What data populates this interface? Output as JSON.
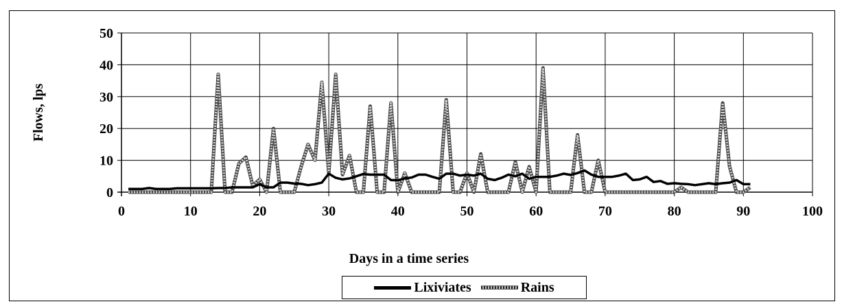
{
  "chart_data": {
    "type": "line",
    "title": "",
    "xlabel": "Days in a time series",
    "ylabel": "Flows, lps",
    "xlim": [
      0,
      100
    ],
    "ylim": [
      0,
      50
    ],
    "x_ticks": [
      0,
      10,
      20,
      30,
      40,
      50,
      60,
      70,
      80,
      90,
      100
    ],
    "y_ticks": [
      0,
      10,
      20,
      30,
      40,
      50
    ],
    "grid": true,
    "legend_position": "bottom",
    "series": [
      {
        "name": "Lixiviates",
        "color": "#000000",
        "style": "solid",
        "points": [
          [
            1,
            1
          ],
          [
            2,
            1
          ],
          [
            3,
            1
          ],
          [
            4,
            1.3
          ],
          [
            5,
            1
          ],
          [
            6,
            1
          ],
          [
            7,
            1
          ],
          [
            8,
            1.2
          ],
          [
            9,
            1.2
          ],
          [
            10,
            1.2
          ],
          [
            11,
            1.2
          ],
          [
            12,
            1.2
          ],
          [
            13,
            1.2
          ],
          [
            14,
            1.3
          ],
          [
            15,
            1.3
          ],
          [
            16,
            1.5
          ],
          [
            17,
            1.5
          ],
          [
            18,
            1.5
          ],
          [
            19,
            1.5
          ],
          [
            20,
            2.5
          ],
          [
            21,
            1.5
          ],
          [
            22,
            1.5
          ],
          [
            23,
            3
          ],
          [
            24,
            3
          ],
          [
            25,
            2.7
          ],
          [
            26,
            2.6
          ],
          [
            27,
            2.2
          ],
          [
            28,
            2.5
          ],
          [
            29,
            3
          ],
          [
            30,
            5.8
          ],
          [
            31,
            4.5
          ],
          [
            32,
            4
          ],
          [
            33,
            4.3
          ],
          [
            34,
            5
          ],
          [
            35,
            5.7
          ],
          [
            36,
            5.5
          ],
          [
            37,
            5.5
          ],
          [
            38,
            5.5
          ],
          [
            39,
            3.8
          ],
          [
            40,
            3.7
          ],
          [
            41,
            4.3
          ],
          [
            42,
            4.6
          ],
          [
            43,
            5.5
          ],
          [
            44,
            5.5
          ],
          [
            45,
            4.8
          ],
          [
            46,
            4.2
          ],
          [
            47,
            5.8
          ],
          [
            48,
            5.8
          ],
          [
            49,
            5.2
          ],
          [
            50,
            5.5
          ],
          [
            51,
            5.2
          ],
          [
            52,
            5.8
          ],
          [
            53,
            4.2
          ],
          [
            54,
            3.8
          ],
          [
            55,
            4.5
          ],
          [
            56,
            5.5
          ],
          [
            57,
            5
          ],
          [
            58,
            5.8
          ],
          [
            59,
            4.2
          ],
          [
            60,
            4.8
          ],
          [
            61,
            4.8
          ],
          [
            62,
            4.8
          ],
          [
            63,
            5.2
          ],
          [
            64,
            5.8
          ],
          [
            65,
            5.4
          ],
          [
            66,
            6
          ],
          [
            67,
            6.8
          ],
          [
            68,
            5.5
          ],
          [
            69,
            4.8
          ],
          [
            70,
            4.8
          ],
          [
            71,
            4.8
          ],
          [
            72,
            5.2
          ],
          [
            73,
            5.8
          ],
          [
            74,
            3.8
          ],
          [
            75,
            4
          ],
          [
            76,
            4.8
          ],
          [
            77,
            3.2
          ],
          [
            78,
            3.5
          ],
          [
            79,
            2.6
          ],
          [
            80,
            2.8
          ],
          [
            81,
            2.6
          ],
          [
            82,
            2.5
          ],
          [
            83,
            2.2
          ],
          [
            84,
            2.5
          ],
          [
            85,
            2.8
          ],
          [
            86,
            2.5
          ],
          [
            87,
            2.8
          ],
          [
            88,
            3
          ],
          [
            89,
            3.8
          ],
          [
            90,
            2.5
          ],
          [
            91,
            2.5
          ]
        ]
      },
      {
        "name": "Rains",
        "color": "#9a9a9a",
        "style": "hatched",
        "points": [
          [
            1,
            0
          ],
          [
            2,
            0
          ],
          [
            3,
            0
          ],
          [
            4,
            0
          ],
          [
            5,
            0
          ],
          [
            6,
            0
          ],
          [
            7,
            0
          ],
          [
            8,
            0
          ],
          [
            9,
            0
          ],
          [
            10,
            0
          ],
          [
            11,
            0
          ],
          [
            12,
            0
          ],
          [
            13,
            0
          ],
          [
            14,
            37
          ],
          [
            15,
            0
          ],
          [
            16,
            0
          ],
          [
            17,
            9
          ],
          [
            18,
            11
          ],
          [
            19,
            2
          ],
          [
            20,
            4
          ],
          [
            21,
            0
          ],
          [
            22,
            20
          ],
          [
            23,
            0
          ],
          [
            24,
            0
          ],
          [
            25,
            0
          ],
          [
            26,
            8
          ],
          [
            27,
            15
          ],
          [
            28,
            10
          ],
          [
            29,
            34.5
          ],
          [
            30,
            6
          ],
          [
            31,
            37
          ],
          [
            32,
            5.5
          ],
          [
            33,
            11.5
          ],
          [
            34,
            0
          ],
          [
            35,
            0
          ],
          [
            36,
            27
          ],
          [
            37,
            0
          ],
          [
            38,
            0
          ],
          [
            39,
            28
          ],
          [
            40,
            0
          ],
          [
            41,
            6
          ],
          [
            42,
            0
          ],
          [
            43,
            0
          ],
          [
            44,
            0
          ],
          [
            45,
            0
          ],
          [
            46,
            0
          ],
          [
            47,
            29
          ],
          [
            48,
            0
          ],
          [
            49,
            0
          ],
          [
            50,
            6
          ],
          [
            51,
            0
          ],
          [
            52,
            12
          ],
          [
            53,
            0
          ],
          [
            54,
            0
          ],
          [
            55,
            0
          ],
          [
            56,
            0
          ],
          [
            57,
            9.5
          ],
          [
            58,
            0
          ],
          [
            59,
            8
          ],
          [
            60,
            0
          ],
          [
            61,
            39
          ],
          [
            62,
            0
          ],
          [
            63,
            0
          ],
          [
            64,
            0
          ],
          [
            65,
            0
          ],
          [
            66,
            18
          ],
          [
            67,
            0
          ],
          [
            68,
            0
          ],
          [
            69,
            10
          ],
          [
            70,
            0
          ],
          [
            71,
            0
          ],
          [
            72,
            0
          ],
          [
            73,
            0
          ],
          [
            74,
            0
          ],
          [
            75,
            0
          ],
          [
            76,
            0
          ],
          [
            77,
            0
          ],
          [
            78,
            0
          ],
          [
            79,
            0
          ],
          [
            80,
            0
          ],
          [
            81,
            1.5
          ],
          [
            82,
            0
          ],
          [
            83,
            0
          ],
          [
            84,
            0
          ],
          [
            85,
            0
          ],
          [
            86,
            0
          ],
          [
            87,
            28
          ],
          [
            88,
            8
          ],
          [
            89,
            0
          ],
          [
            90,
            0
          ],
          [
            91,
            1.5
          ]
        ]
      }
    ]
  }
}
